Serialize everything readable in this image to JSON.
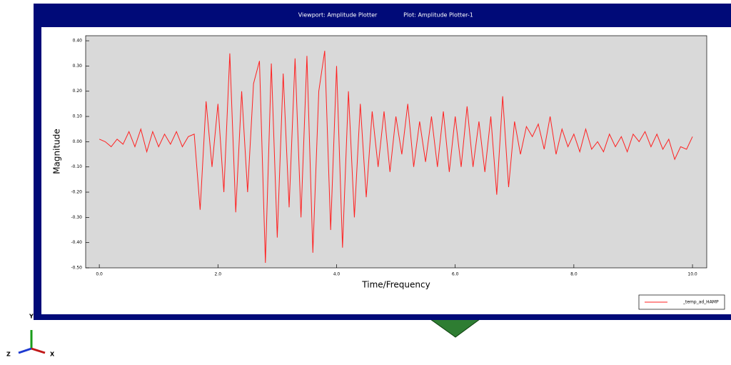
{
  "window": {
    "viewport_label": "Viewport: Amplitude Plotter",
    "plot_label": "Plot: Amplitude Plotter-1"
  },
  "triad": {
    "labels": [
      "Y",
      "Z",
      "X"
    ]
  },
  "chart_data": {
    "type": "line",
    "x_label": "Time/Frequency",
    "y_label": "Magnitude",
    "x": [
      0.0,
      0.1,
      0.2,
      0.3,
      0.4,
      0.5,
      0.6,
      0.7,
      0.8,
      0.9,
      1.0,
      1.1,
      1.2,
      1.3,
      1.4,
      1.5,
      1.6,
      1.7,
      1.8,
      1.9,
      2.0,
      2.1,
      2.2,
      2.3,
      2.4,
      2.5,
      2.6,
      2.7,
      2.8,
      2.9,
      3.0,
      3.1,
      3.2,
      3.3,
      3.4,
      3.5,
      3.6,
      3.7,
      3.8,
      3.9,
      4.0,
      4.1,
      4.2,
      4.3,
      4.4,
      4.5,
      4.6,
      4.7,
      4.8,
      4.9,
      5.0,
      5.1,
      5.2,
      5.3,
      5.4,
      5.5,
      5.6,
      5.7,
      5.8,
      5.9,
      6.0,
      6.1,
      6.2,
      6.3,
      6.4,
      6.5,
      6.6,
      6.7,
      6.8,
      6.9,
      7.0,
      7.1,
      7.2,
      7.3,
      7.4,
      7.5,
      7.6,
      7.7,
      7.8,
      7.9,
      8.0,
      8.1,
      8.2,
      8.3,
      8.4,
      8.5,
      8.6,
      8.7,
      8.8,
      8.9,
      9.0,
      9.1,
      9.2,
      9.3,
      9.4,
      9.5,
      9.6,
      9.7,
      9.8,
      9.9,
      10.0
    ],
    "series": [
      {
        "name": "_temp_ad_HAMP",
        "color": "#ff2020",
        "values": [
          0.01,
          0.0,
          -0.02,
          0.01,
          -0.01,
          0.04,
          -0.02,
          0.05,
          -0.04,
          0.04,
          -0.02,
          0.03,
          -0.01,
          0.04,
          -0.02,
          0.02,
          0.03,
          -0.27,
          0.16,
          -0.1,
          0.15,
          -0.2,
          0.35,
          -0.28,
          0.2,
          -0.2,
          0.23,
          0.32,
          -0.48,
          0.31,
          -0.38,
          0.27,
          -0.26,
          0.33,
          -0.3,
          0.34,
          -0.44,
          0.2,
          0.36,
          -0.35,
          0.3,
          -0.42,
          0.2,
          -0.3,
          0.15,
          -0.22,
          0.12,
          -0.1,
          0.12,
          -0.12,
          0.1,
          -0.05,
          0.15,
          -0.1,
          0.08,
          -0.08,
          0.1,
          -0.1,
          0.12,
          -0.12,
          0.1,
          -0.1,
          0.14,
          -0.1,
          0.08,
          -0.12,
          0.1,
          -0.21,
          0.18,
          -0.18,
          0.08,
          -0.05,
          0.06,
          0.02,
          0.07,
          -0.03,
          0.1,
          -0.05,
          0.05,
          -0.02,
          0.03,
          -0.04,
          0.05,
          -0.03,
          0.0,
          -0.04,
          0.03,
          -0.02,
          0.02,
          -0.04,
          0.03,
          0.0,
          0.04,
          -0.02,
          0.03,
          -0.03,
          0.01,
          -0.07,
          -0.02,
          -0.03,
          0.02
        ]
      }
    ],
    "xlim": [
      -0.23,
      10.24
    ],
    "ylim": [
      -0.5,
      0.42
    ],
    "xticks": [
      {
        "value": 0,
        "label": "0.0"
      },
      {
        "value": 2,
        "label": "2.0"
      },
      {
        "value": 4,
        "label": "4.0"
      },
      {
        "value": 6,
        "label": "6.0"
      },
      {
        "value": 8,
        "label": "8.0"
      },
      {
        "value": 10,
        "label": "10.0"
      }
    ],
    "yticks": [
      {
        "value": 0.4,
        "label": "0.40"
      },
      {
        "value": 0.3,
        "label": "0.30"
      },
      {
        "value": 0.2,
        "label": "0.20"
      },
      {
        "value": 0.1,
        "label": "0.10"
      },
      {
        "value": 0,
        "label": "0.00"
      },
      {
        "value": -0.1,
        "label": "-0.10"
      },
      {
        "value": -0.2,
        "label": "-0.20"
      },
      {
        "value": -0.3,
        "label": "-0.30"
      },
      {
        "value": -0.4,
        "label": "-0.40"
      },
      {
        "value": -0.5,
        "label": "-0.50"
      }
    ],
    "legend": "lower-right"
  }
}
